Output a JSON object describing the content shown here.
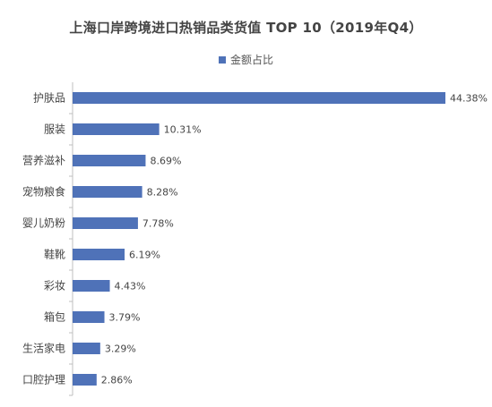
{
  "chart_data": {
    "type": "bar",
    "orientation": "horizontal",
    "title": "上海口岸跨境进口热销品类货值 TOP 10（2019年Q4）",
    "legend": {
      "label": "金额占比",
      "placement": "top-center"
    },
    "categories": [
      "护肤品",
      "服装",
      "营养滋补",
      "宠物粮食",
      "婴儿奶粉",
      "鞋靴",
      "彩妆",
      "箱包",
      "生活家电",
      "口腔护理"
    ],
    "series": [
      {
        "name": "金额占比",
        "values": [
          44.38,
          10.31,
          8.69,
          8.28,
          7.78,
          6.19,
          4.43,
          3.79,
          3.29,
          2.86
        ],
        "labels": [
          "44.38%",
          "10.31%",
          "8.69%",
          "8.28%",
          "7.78%",
          "6.19%",
          "4.43%",
          "3.79%",
          "3.29%",
          "2.86%"
        ]
      }
    ],
    "xlim": [
      0,
      44.38
    ],
    "grid": false,
    "color": "#4f72b8"
  }
}
